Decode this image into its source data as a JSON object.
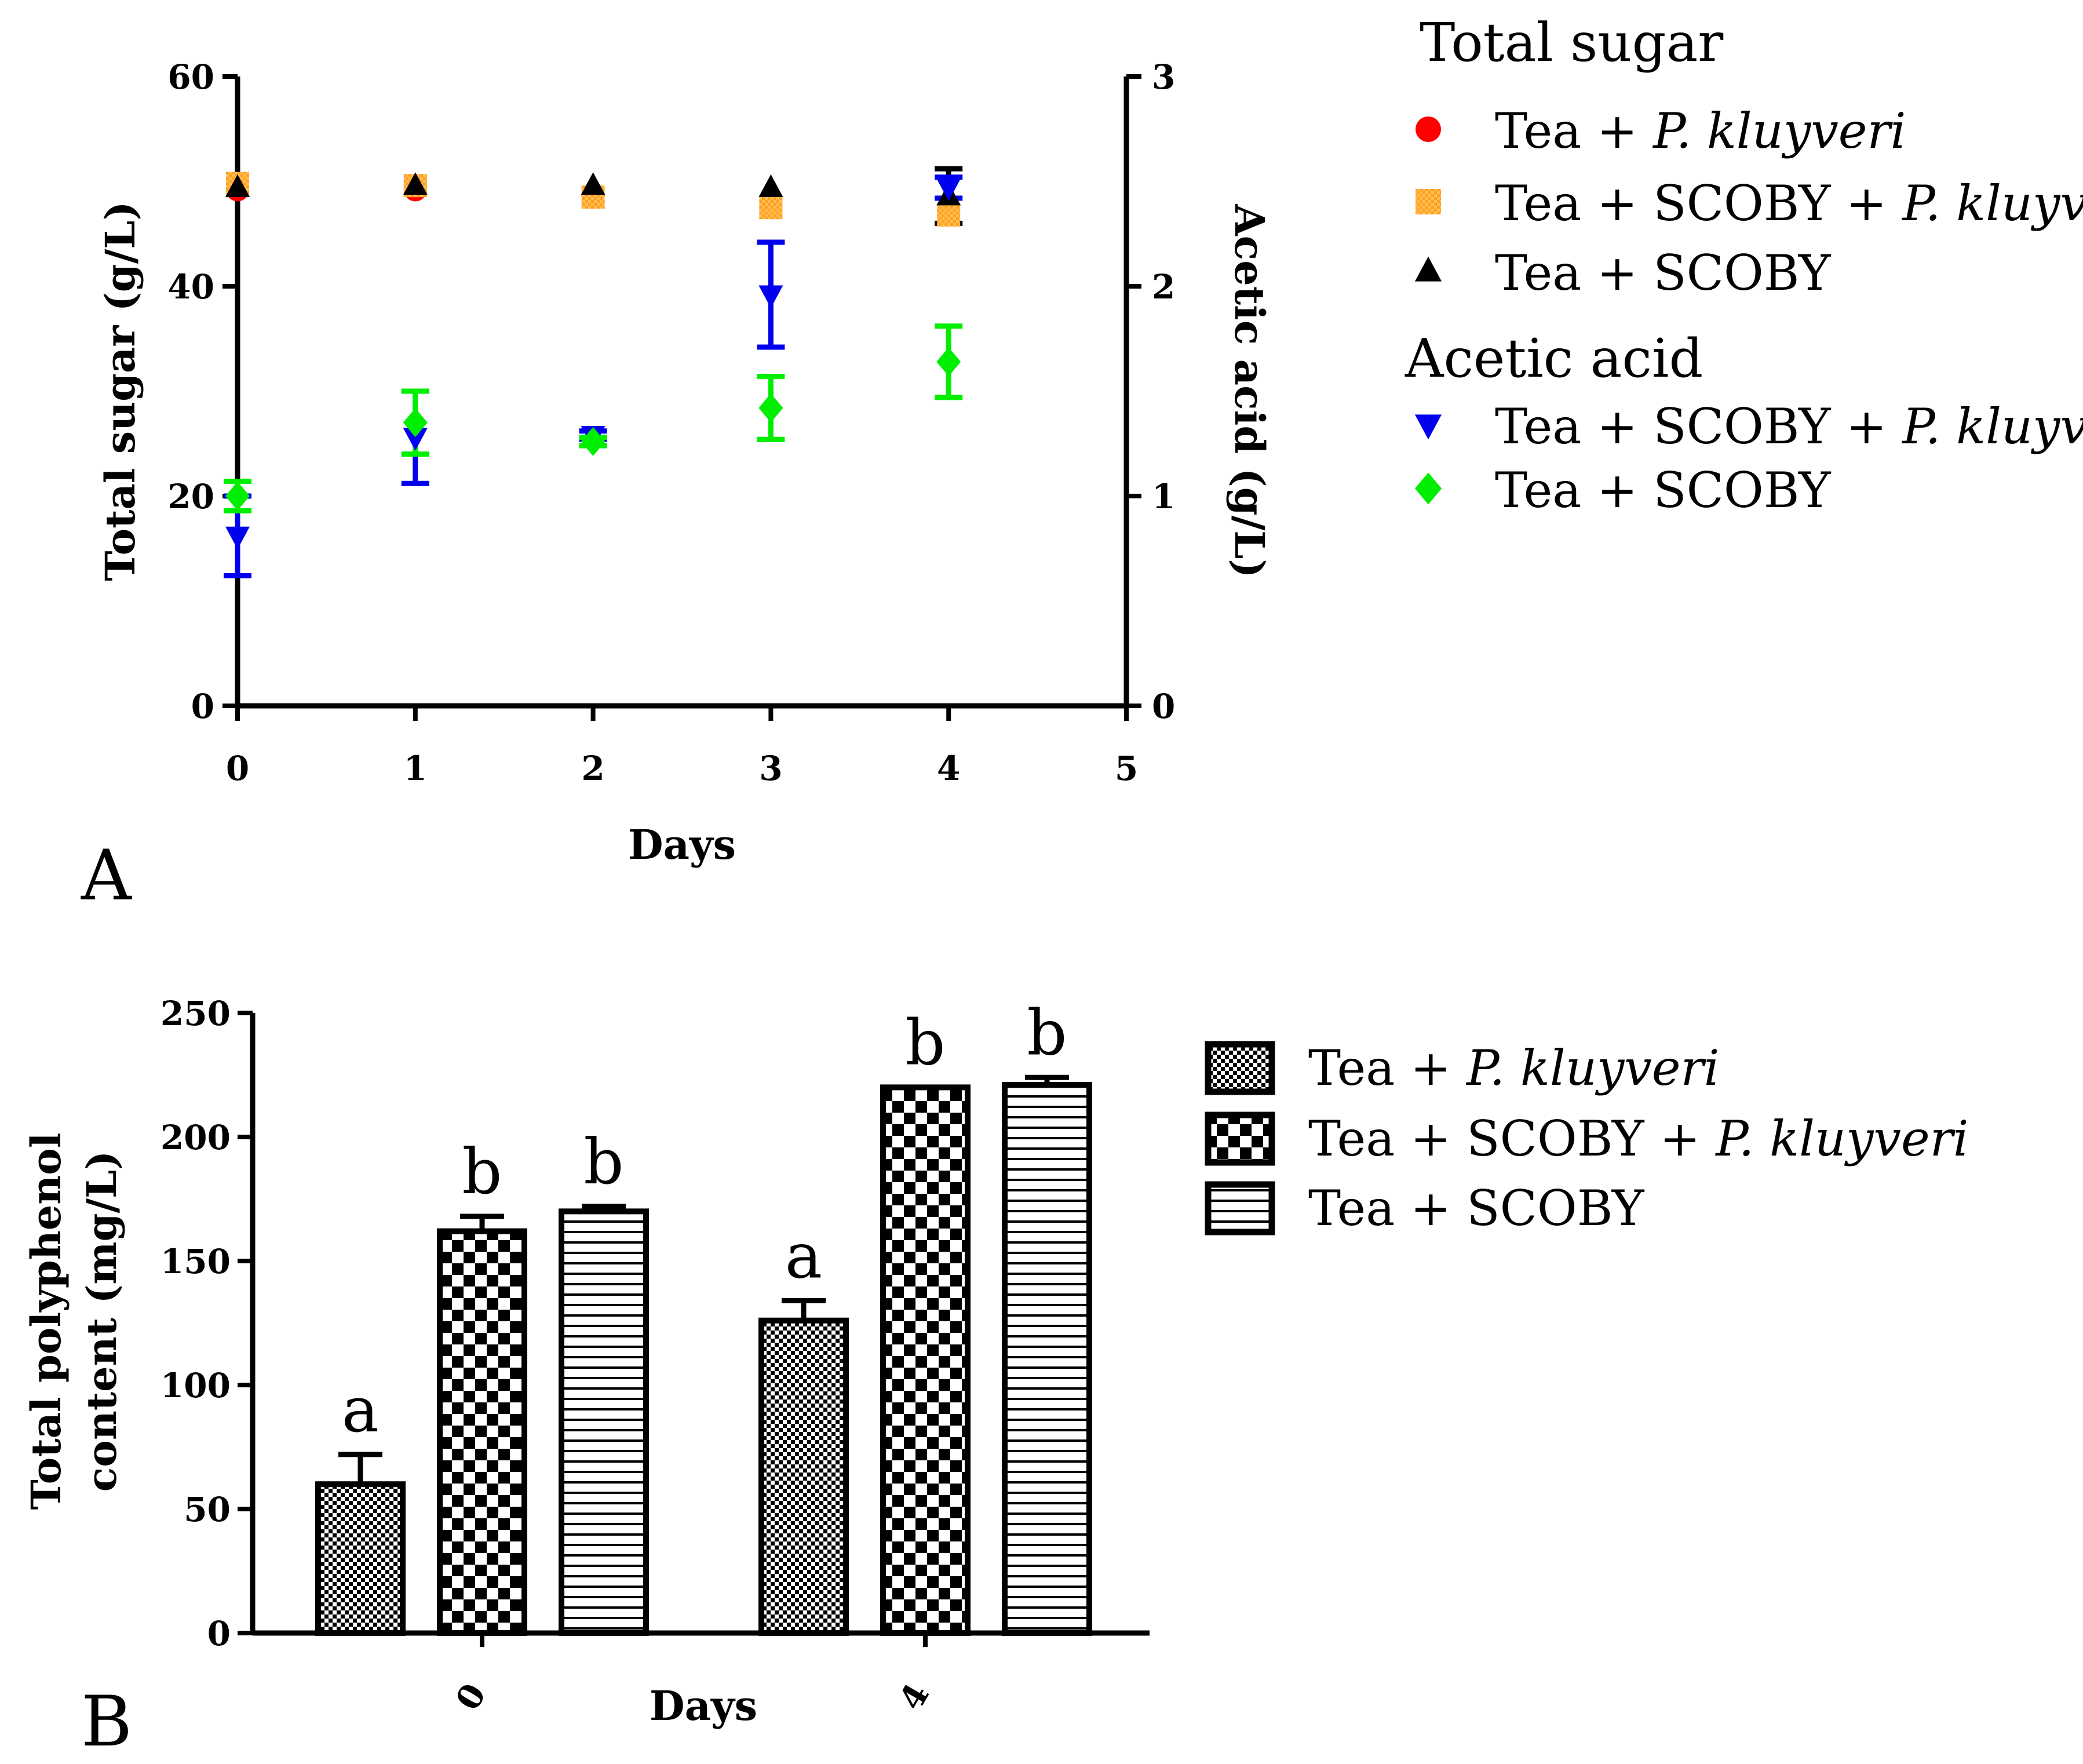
{
  "chart_data": [
    {
      "type": "scatter",
      "panel_label": "A",
      "xlabel": "Days",
      "ylabel_left": "Total sugar (g/L)",
      "ylabel_right": "Acetic acid (g/L)",
      "xlim": [
        0,
        5
      ],
      "ylim_left": [
        0,
        60
      ],
      "ylim_right": [
        0,
        3
      ],
      "xticks": [
        "0",
        "1",
        "2",
        "3",
        "4",
        "5"
      ],
      "yticks_left": [
        "0",
        "20",
        "40",
        "60"
      ],
      "yticks_right": [
        "0",
        "1",
        "2",
        "3"
      ],
      "legend_sections": [
        {
          "heading": "Total sugar",
          "series_ids": [
            "s1",
            "s2",
            "s3"
          ]
        },
        {
          "heading": "Acetic acid",
          "series_ids": [
            "s4",
            "s5"
          ]
        }
      ],
      "series": [
        {
          "id": "s1",
          "name_plain": "Tea + ",
          "name_italic": "P. kluyveri",
          "group": "Total sugar",
          "axis": "left",
          "marker": "circle",
          "color": "#ff0000",
          "x": [
            0,
            1
          ],
          "y": [
            49.2,
            49.2
          ],
          "err": [
            0,
            0
          ]
        },
        {
          "id": "s2",
          "name_plain": "Tea + SCOBY + ",
          "name_italic": "P. kluyveri",
          "group": "Total sugar",
          "axis": "left",
          "marker": "square",
          "color": "#ffa020",
          "x": [
            0,
            1,
            2,
            3,
            4
          ],
          "y": [
            49.8,
            49.6,
            48.5,
            47.5,
            46.8
          ],
          "err": [
            0,
            0,
            0,
            0,
            0
          ]
        },
        {
          "id": "s3",
          "name_plain": "Tea + SCOBY",
          "name_italic": "",
          "group": "Total sugar",
          "axis": "left",
          "marker": "triangle-up",
          "color": "#000000",
          "x": [
            0,
            1,
            2,
            3,
            4
          ],
          "y": [
            49.4,
            49.6,
            49.6,
            49.4,
            48.6
          ],
          "err": [
            0,
            0,
            0,
            0,
            2.6
          ]
        },
        {
          "id": "s4",
          "name_plain": "Tea + SCOBY + ",
          "name_italic": "P. kluyveri",
          "group": "Acetic acid",
          "axis": "right",
          "marker": "triangle-down",
          "color": "#0000ee",
          "x": [
            0,
            1,
            2,
            3,
            4
          ],
          "y": [
            0.81,
            1.28,
            1.29,
            1.96,
            2.47
          ],
          "err": [
            0.19,
            0.22,
            0.02,
            0.25,
            0.05
          ]
        },
        {
          "id": "s5",
          "name_plain": "Tea + SCOBY",
          "name_italic": "",
          "group": "Acetic acid",
          "axis": "right",
          "marker": "diamond",
          "color": "#00ee00",
          "x": [
            0,
            1,
            2,
            3,
            4
          ],
          "y": [
            1.0,
            1.35,
            1.26,
            1.42,
            1.64
          ],
          "err": [
            0.07,
            0.15,
            0.02,
            0.15,
            0.17
          ]
        }
      ]
    },
    {
      "type": "bar",
      "panel_label": "B",
      "xlabel": "Days",
      "ylabel_lines": [
        "Total polyphenol",
        "content (mg/L)"
      ],
      "ylim": [
        0,
        250
      ],
      "yticks": [
        "0",
        "50",
        "100",
        "150",
        "200",
        "250"
      ],
      "categories": [
        "0",
        "4"
      ],
      "series": [
        {
          "name_plain": "Tea + ",
          "name_italic": "P. kluyveri",
          "pattern": "fine-check",
          "values": [
            60,
            126
          ],
          "err": [
            12,
            8
          ],
          "letters": [
            "a",
            "a"
          ]
        },
        {
          "name_plain": "Tea + SCOBY + ",
          "name_italic": "P. kluyveri",
          "pattern": "coarse-check",
          "values": [
            162,
            220
          ],
          "err": [
            6,
            0
          ],
          "letters": [
            "b",
            "b"
          ]
        },
        {
          "name_plain": "Tea + SCOBY",
          "name_italic": "",
          "pattern": "horizontal-lines",
          "values": [
            170,
            221
          ],
          "err": [
            2,
            3
          ],
          "letters": [
            "b",
            "b"
          ]
        }
      ]
    }
  ]
}
